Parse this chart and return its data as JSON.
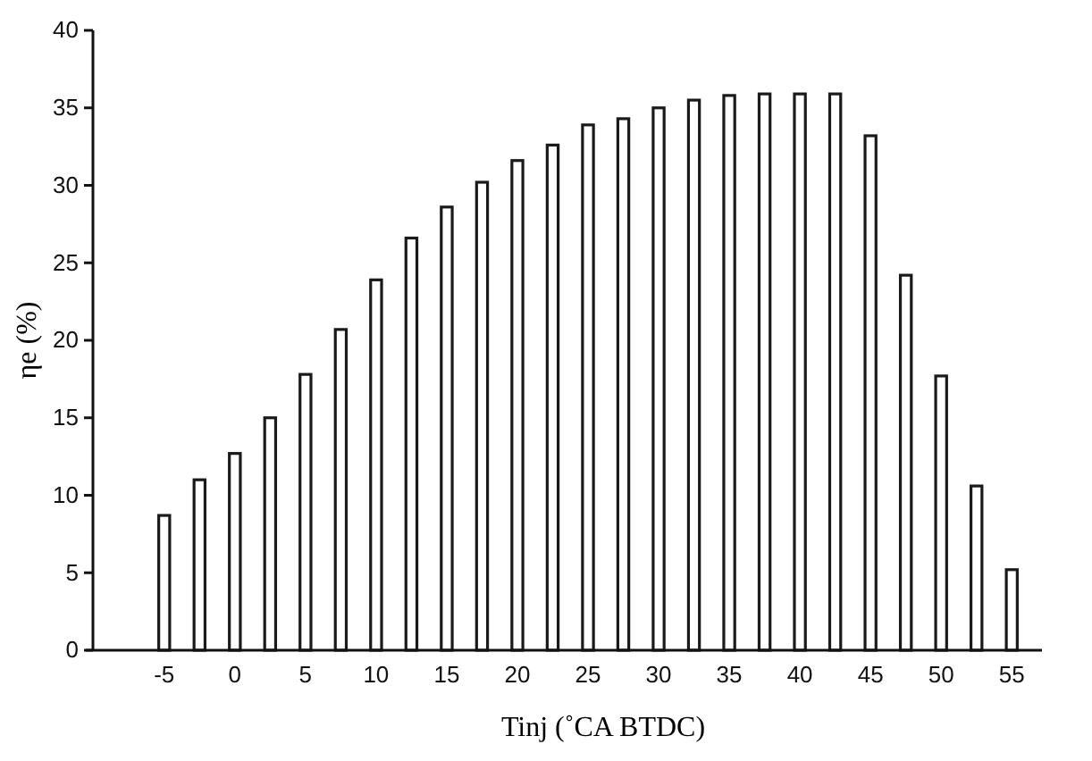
{
  "chart_data": {
    "type": "bar",
    "xlabel": "Tinj (˚CA BTDC)",
    "ylabel": "ηe (%)",
    "categories": [
      "-5",
      null,
      "0",
      null,
      "5",
      null,
      "10",
      null,
      "15",
      null,
      "20",
      null,
      "25",
      null,
      "30",
      null,
      "35",
      null,
      "40",
      null,
      "45",
      null,
      "50",
      null,
      "55"
    ],
    "values": [
      8.7,
      11.0,
      12.7,
      15.0,
      17.8,
      20.7,
      23.9,
      26.6,
      28.6,
      30.2,
      31.6,
      32.6,
      33.9,
      34.3,
      35.0,
      35.5,
      35.8,
      35.9,
      35.9,
      35.9,
      33.2,
      24.2,
      17.7,
      10.6,
      5.2
    ],
    "color": "#ffffff",
    "ylim": [
      0,
      40
    ],
    "yticks": [
      0,
      5,
      10,
      15,
      20,
      25,
      30,
      35,
      40
    ],
    "grid": false
  }
}
